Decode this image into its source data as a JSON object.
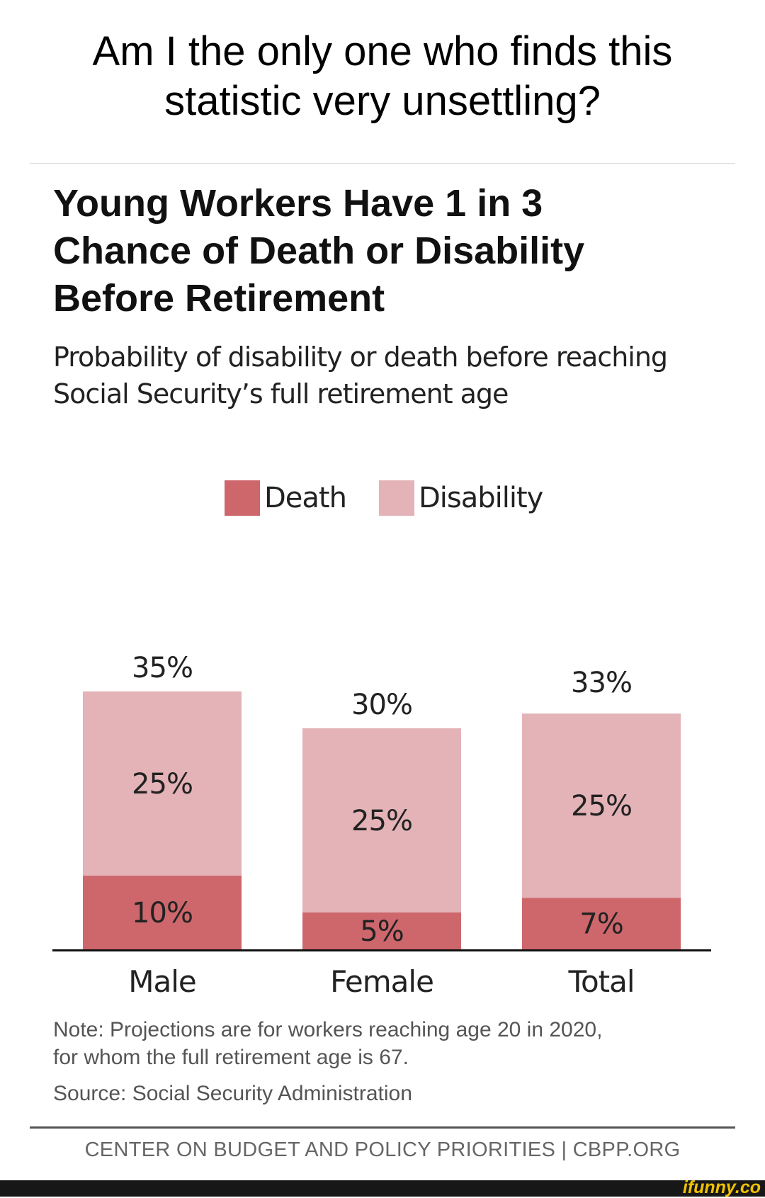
{
  "meme": {
    "caption_line1": "Am I the only one who finds this",
    "caption_line2": "statistic very unsettling?"
  },
  "chart_data": {
    "type": "bar",
    "stacked": true,
    "title_lines": [
      "Young Workers Have 1 in 3",
      "Chance of Death or Disability",
      "Before Retirement"
    ],
    "subtitle_lines": [
      "Probability of disability or death before reaching",
      "Social Security’s full retirement age"
    ],
    "categories": [
      "Male",
      "Female",
      "Total"
    ],
    "series": [
      {
        "name": "Death",
        "color": "#cd676c",
        "values": [
          10,
          5,
          7
        ],
        "labels": [
          "10%",
          "5%",
          "7%"
        ]
      },
      {
        "name": "Disability",
        "color": "#e4b3b7",
        "values": [
          25,
          25,
          25
        ],
        "labels": [
          "25%",
          "25%",
          "25%"
        ]
      }
    ],
    "totals": [
      35,
      30,
      33
    ],
    "total_labels": [
      "35%",
      "30%",
      "33%"
    ],
    "ylim": [
      0,
      35
    ],
    "xlabel": "",
    "ylabel": "",
    "grid": false,
    "legend": "top-center"
  },
  "note": {
    "line1": "Note: Projections are for workers reaching age 20 in 2020,",
    "line2": "for whom the full retirement age is 67."
  },
  "source": "Source: Social Security Administration",
  "credit": "CENTER ON BUDGET AND POLICY PRIORITIES | CBPP.ORG",
  "watermark": "ifunny.co"
}
